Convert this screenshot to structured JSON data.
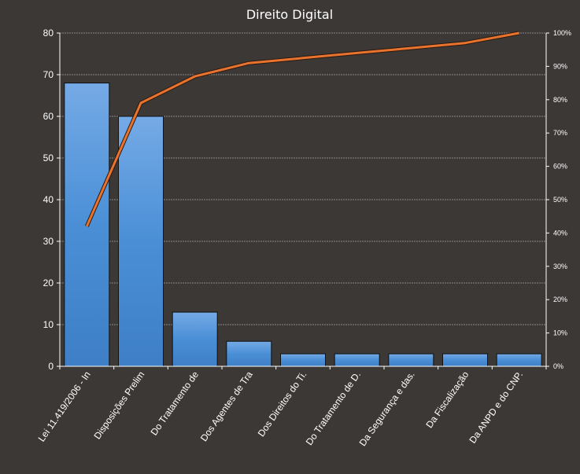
{
  "chart_data": {
    "type": "bar",
    "title": "Direito Digital",
    "categories": [
      "Lei 11.419/2006  - In",
      "Disposições Prelim",
      "Do Tratamento de",
      "Dos Agentes de Tra",
      "Dos Direitos do Ti.",
      "Do Tratamento de D.",
      "Da Segurança e das.",
      "Da Fiscalização",
      "Da ANPD e do CNP."
    ],
    "series": [
      {
        "type": "bar",
        "values": [
          68,
          60,
          13,
          6,
          3,
          3,
          3,
          3,
          3
        ],
        "color": "#4a8fd6"
      },
      {
        "type": "line",
        "axis": "right",
        "values": [
          42,
          79,
          87,
          91,
          92.5,
          94,
          95.5,
          97,
          100
        ],
        "color": "#e8732e"
      }
    ],
    "ylim": [
      0,
      80
    ],
    "yticks": [
      "0",
      "10",
      "20",
      "30",
      "40",
      "50",
      "60",
      "70",
      "80"
    ],
    "y2lim": [
      0,
      100
    ],
    "y2ticks": [
      "0%",
      "10%",
      "20%",
      "30%",
      "40%",
      "50%",
      "60%",
      "70%",
      "80%",
      "90%",
      "100%"
    ],
    "grid": true,
    "legend": "none",
    "colors": {
      "background": "#3b3836",
      "bar": "#4a8fd6",
      "line": "#e8732e",
      "grid": "#d9d9d9"
    }
  }
}
